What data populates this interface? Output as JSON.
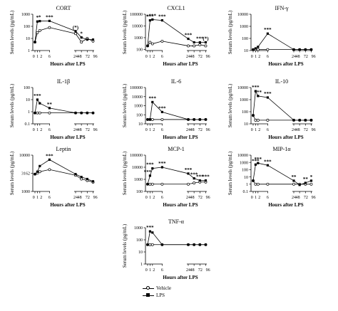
{
  "legend": {
    "vehicle_label": "Vehicle",
    "lps_label": "LPS"
  },
  "colors": {
    "line": "#000000",
    "open_marker_fill": "#ffffff",
    "filled_marker": "#000000"
  },
  "chart_data": [
    {
      "type": "line",
      "title": "CORT",
      "xlabel": "Hours after LPS",
      "ylabel": "Serum levels (pg/mL)",
      "yscale": "log",
      "ylim": [
        1,
        1000
      ],
      "yticks": [
        "1",
        "10",
        "100",
        "1000"
      ],
      "xticks": [
        "0",
        "1",
        "2",
        "6",
        "24",
        "48",
        "72",
        "96"
      ],
      "series": [
        {
          "name": "Vehicle",
          "x": [
            0,
            1,
            2,
            6,
            24,
            48,
            72,
            96
          ],
          "y": [
            5,
            30,
            45,
            80,
            25,
            5,
            10,
            6
          ]
        },
        {
          "name": "LPS",
          "x": [
            0,
            1,
            2,
            6,
            24,
            48,
            72,
            96
          ],
          "y": [
            5,
            250,
            270,
            280,
            40,
            12,
            8,
            8
          ]
        }
      ],
      "annotations": [
        {
          "text": "*",
          "x": 1,
          "y": 250
        },
        {
          "text": "*",
          "x": 2,
          "y": 270
        },
        {
          "text": "***",
          "x": 6,
          "y": 280
        },
        {
          "text": "(*)",
          "x": 24,
          "y": 40
        },
        {
          "text": "*",
          "x": 48,
          "y": 12
        }
      ]
    },
    {
      "type": "line",
      "title": "CXCL1",
      "xlabel": "Hours after LPS",
      "ylabel": "Serum levels (pg/mL)",
      "yscale": "log",
      "ylim": [
        80,
        100000
      ],
      "yticks": [
        "100",
        "1000",
        "10000",
        "100000"
      ],
      "xticks": [
        "0",
        "1",
        "2",
        "6",
        "24",
        "48",
        "72",
        "96"
      ],
      "series": [
        {
          "name": "Vehicle",
          "x": [
            0,
            1,
            2,
            6,
            24,
            48,
            72,
            96
          ],
          "y": [
            200,
            400,
            300,
            500,
            200,
            200,
            250,
            200
          ]
        },
        {
          "name": "LPS",
          "x": [
            0,
            1,
            2,
            6,
            24,
            48,
            72,
            96
          ],
          "y": [
            200,
            30000,
            35000,
            30000,
            800,
            400,
            400,
            400
          ]
        }
      ],
      "annotations": [
        {
          "text": "*",
          "x": 0,
          "y": 30000
        },
        {
          "text": "***",
          "x": 1,
          "y": 30000
        },
        {
          "text": "***",
          "x": 2,
          "y": 35000
        },
        {
          "text": "***",
          "x": 6,
          "y": 30000
        },
        {
          "text": "***",
          "x": 24,
          "y": 800
        },
        {
          "text": "***",
          "x": 72,
          "y": 400
        },
        {
          "text": "(*)",
          "x": 96,
          "y": 400
        }
      ]
    },
    {
      "type": "line",
      "title": "IFN-γ",
      "xlabel": "Hours after LPS",
      "ylabel": "Serum levels (pg/mL)",
      "yscale": "log",
      "ylim": [
        10,
        10000
      ],
      "yticks": [
        "10",
        "100",
        "1000",
        "10000"
      ],
      "xticks": [
        "0",
        "1",
        "2",
        "6",
        "24",
        "48",
        "72",
        "96"
      ],
      "series": [
        {
          "name": "Vehicle",
          "x": [
            0,
            1,
            2,
            6,
            24,
            48,
            72,
            96
          ],
          "y": [
            12,
            12,
            12,
            12,
            12,
            12,
            12,
            12
          ]
        },
        {
          "name": "LPS",
          "x": [
            0,
            1,
            2,
            6,
            24,
            48,
            72,
            96
          ],
          "y": [
            12,
            15,
            20,
            250,
            12,
            12,
            12,
            12
          ]
        }
      ],
      "annotations": [
        {
          "text": "***",
          "x": 6,
          "y": 250
        }
      ]
    },
    {
      "type": "line",
      "title": "IL-1β",
      "xlabel": "Hours after LPS",
      "ylabel": "Serum levels (pg/mL)",
      "yscale": "log",
      "ylim": [
        0.1,
        100
      ],
      "yticks": [
        "0.1",
        "1",
        "10",
        "100"
      ],
      "xticks": [
        "0",
        "1",
        "2",
        "6",
        "24",
        "48",
        "72",
        "96"
      ],
      "series": [
        {
          "name": "Vehicle",
          "x": [
            0,
            1,
            2,
            6,
            24,
            48,
            72,
            96
          ],
          "y": [
            0.8,
            0.8,
            0.8,
            0.8,
            0.8,
            0.8,
            0.8,
            0.8
          ]
        },
        {
          "name": "LPS",
          "x": [
            0,
            1,
            2,
            6,
            24,
            48,
            72,
            96
          ],
          "y": [
            0.8,
            10,
            5,
            2,
            0.8,
            0.8,
            0.8,
            0.8
          ]
        }
      ],
      "annotations": [
        {
          "text": "***",
          "x": 1,
          "y": 10
        },
        {
          "text": "**",
          "x": 6,
          "y": 2
        }
      ]
    },
    {
      "type": "line",
      "title": "IL-6",
      "xlabel": "Hours after LPS",
      "ylabel": "Serum levels (pg/mL)",
      "yscale": "log",
      "ylim": [
        10,
        100000
      ],
      "yticks": [
        "10",
        "100",
        "1000",
        "10000",
        "100000"
      ],
      "xticks": [
        "0",
        "1",
        "2",
        "6",
        "24",
        "48",
        "72",
        "96"
      ],
      "series": [
        {
          "name": "Vehicle",
          "x": [
            0,
            1,
            2,
            6,
            24,
            48,
            72,
            96
          ],
          "y": [
            30,
            30,
            30,
            30,
            30,
            30,
            30,
            30
          ]
        },
        {
          "name": "LPS",
          "x": [
            0,
            1,
            2,
            6,
            24,
            48,
            72,
            96
          ],
          "y": [
            30,
            30,
            2500,
            200,
            30,
            30,
            30,
            30
          ]
        }
      ],
      "annotations": [
        {
          "text": "***",
          "x": 2,
          "y": 2500
        },
        {
          "text": "***",
          "x": 6,
          "y": 200
        }
      ]
    },
    {
      "type": "line",
      "title": "IL-10",
      "xlabel": "Hours after LPS",
      "ylabel": "Serum levels (pg/mL)",
      "yscale": "log",
      "ylim": [
        10,
        10000
      ],
      "yticks": [
        "10",
        "100",
        "1000",
        "10000"
      ],
      "xticks": [
        "0",
        "1",
        "2",
        "6",
        "24",
        "48",
        "72",
        "96"
      ],
      "series": [
        {
          "name": "Vehicle",
          "x": [
            0,
            1,
            2,
            6,
            24,
            48,
            72,
            96
          ],
          "y": [
            50,
            20,
            20,
            20,
            20,
            20,
            20,
            20
          ]
        },
        {
          "name": "LPS",
          "x": [
            0,
            1,
            2,
            6,
            24,
            48,
            72,
            96
          ],
          "y": [
            50,
            5000,
            2000,
            1500,
            20,
            20,
            20,
            20
          ]
        }
      ],
      "annotations": [
        {
          "text": "***",
          "x": 1,
          "y": 5000
        },
        {
          "text": "***",
          "x": 2,
          "y": 2000
        },
        {
          "text": "***",
          "x": 6,
          "y": 1500
        }
      ]
    },
    {
      "type": "line",
      "title": "Leptin",
      "xlabel": "Hours after LPS",
      "ylabel": "Serum levels (pg/mL)",
      "yscale": "log",
      "ylim": [
        1000,
        10000
      ],
      "yticks": [
        "1000",
        "3162",
        "10000"
      ],
      "xticks": [
        "0",
        "1",
        "2",
        "6",
        "24",
        "48",
        "72",
        "96"
      ],
      "series": [
        {
          "name": "Vehicle",
          "x": [
            0,
            1,
            2,
            6,
            24,
            48,
            72,
            96
          ],
          "y": [
            3000,
            3200,
            3500,
            4000,
            2800,
            2200,
            2000,
            1800
          ]
        },
        {
          "name": "LPS",
          "x": [
            0,
            1,
            2,
            6,
            24,
            48,
            72,
            96
          ],
          "y": [
            3000,
            3500,
            5000,
            7500,
            3000,
            2500,
            2200,
            1900
          ]
        }
      ],
      "annotations": [
        {
          "text": "***",
          "x": 6,
          "y": 7500
        }
      ]
    },
    {
      "type": "line",
      "title": "MCP-1",
      "xlabel": "Hours after LPS",
      "ylabel": "Serum levels (pg/mL)",
      "yscale": "log",
      "ylim": [
        100,
        100000
      ],
      "yticks": [
        "100",
        "1000",
        "10000",
        "100000"
      ],
      "xticks": [
        "0",
        "1",
        "2",
        "6",
        "24",
        "48",
        "72",
        "96"
      ],
      "series": [
        {
          "name": "Vehicle",
          "x": [
            0,
            1,
            2,
            6,
            24,
            48,
            72,
            96
          ],
          "y": [
            400,
            400,
            400,
            400,
            400,
            500,
            600,
            600
          ]
        },
        {
          "name": "LPS",
          "x": [
            0,
            1,
            2,
            6,
            24,
            48,
            72,
            96
          ],
          "y": [
            400,
            2000,
            8000,
            10000,
            3000,
            1200,
            800,
            800
          ]
        }
      ],
      "annotations": [
        {
          "text": "***",
          "x": 0,
          "y": 2000
        },
        {
          "text": "***",
          "x": 1,
          "y": 8000
        },
        {
          "text": "***",
          "x": 6,
          "y": 10000
        },
        {
          "text": "***",
          "x": 24,
          "y": 3000
        },
        {
          "text": "***",
          "x": 48,
          "y": 1200
        },
        {
          "text": "***",
          "x": 72,
          "y": 800
        },
        {
          "text": "***",
          "x": 96,
          "y": 800
        }
      ]
    },
    {
      "type": "line",
      "title": "MIP-1α",
      "xlabel": "Hours after LPS",
      "ylabel": "Serum levels (pg/mL)",
      "yscale": "log",
      "ylim": [
        0.1,
        10000
      ],
      "yticks": [
        "0.1",
        "1",
        "10",
        "100",
        "1000",
        "10000"
      ],
      "xticks": [
        "0",
        "1",
        "2",
        "6",
        "24",
        "48",
        "72",
        "96"
      ],
      "series": [
        {
          "name": "Vehicle",
          "x": [
            0,
            1,
            2,
            6,
            24,
            48,
            72,
            96
          ],
          "y": [
            3,
            1,
            1,
            1,
            1,
            1,
            1,
            1
          ]
        },
        {
          "name": "LPS",
          "x": [
            0,
            1,
            2,
            6,
            24,
            48,
            72,
            96
          ],
          "y": [
            3,
            500,
            800,
            400,
            3,
            0.8,
            1.5,
            3
          ]
        }
      ],
      "annotations": [
        {
          "text": "***",
          "x": 1,
          "y": 500
        },
        {
          "text": "***",
          "x": 2,
          "y": 800
        },
        {
          "text": "***",
          "x": 6,
          "y": 400
        },
        {
          "text": "**",
          "x": 24,
          "y": 3
        },
        {
          "text": "**",
          "x": 72,
          "y": 1.5
        },
        {
          "text": "*",
          "x": 96,
          "y": 3
        }
      ]
    },
    {
      "type": "line",
      "title": "TNF-α",
      "xlabel": "Hours after LPS",
      "ylabel": "Serum levels (pg/mL)",
      "yscale": "log",
      "ylim": [
        1,
        1000
      ],
      "yticks": [
        "1",
        "10",
        "100",
        "1000"
      ],
      "xticks": [
        "0",
        "1",
        "2",
        "6",
        "24",
        "48",
        "72",
        "96"
      ],
      "series": [
        {
          "name": "Vehicle",
          "x": [
            0,
            1,
            2,
            6,
            24,
            48,
            72,
            96
          ],
          "y": [
            40,
            40,
            40,
            40,
            40,
            40,
            40,
            40
          ]
        },
        {
          "name": "LPS",
          "x": [
            0,
            1,
            2,
            6,
            24,
            48,
            72,
            96
          ],
          "y": [
            40,
            500,
            400,
            40,
            40,
            40,
            40,
            40
          ]
        }
      ],
      "annotations": [
        {
          "text": "***",
          "x": 1,
          "y": 500
        }
      ]
    }
  ]
}
